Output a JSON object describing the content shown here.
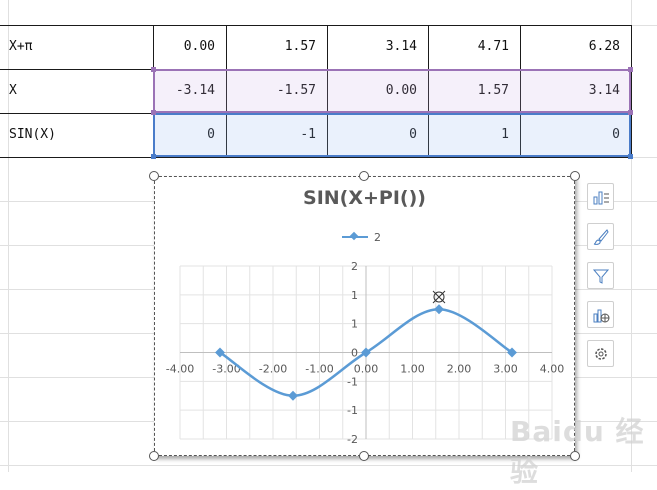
{
  "sheet": {
    "rows": [
      {
        "label": "X+π",
        "values": [
          "0.00",
          "1.57",
          "3.14",
          "4.71",
          "6.28"
        ]
      },
      {
        "label": "X",
        "values": [
          "-3.14",
          "-1.57",
          "0.00",
          "1.57",
          "3.14"
        ]
      },
      {
        "label": "SIN(X)",
        "values": [
          "0",
          "-1",
          "0",
          "1",
          "0"
        ]
      }
    ]
  },
  "chart_data": {
    "type": "scatter",
    "title": "SIN(X+PI())",
    "series": [
      {
        "name": "2",
        "x": [
          -3.14,
          -1.57,
          0.0,
          1.57,
          3.14
        ],
        "y": [
          0,
          -1,
          0,
          1,
          0
        ],
        "color": "#5b9bd5",
        "smooth": true
      }
    ],
    "xlim": [
      -4.0,
      4.0
    ],
    "ylim": [
      -2,
      2
    ],
    "x_ticks": [
      "-4.00",
      "-3.00",
      "-2.00",
      "-1.00",
      "0.00",
      "1.00",
      "2.00",
      "3.00",
      "4.00"
    ],
    "y_ticks": [
      "2",
      "1",
      "1",
      "0",
      "-1",
      "-1",
      "-2"
    ],
    "grid": true,
    "legend_position": "top"
  },
  "chart_tools": [
    "chart-elements-icon",
    "chart-styles-icon",
    "chart-filters-icon",
    "chart-layout-icon",
    "chart-settings-icon"
  ],
  "watermark": "Baidu 经验"
}
